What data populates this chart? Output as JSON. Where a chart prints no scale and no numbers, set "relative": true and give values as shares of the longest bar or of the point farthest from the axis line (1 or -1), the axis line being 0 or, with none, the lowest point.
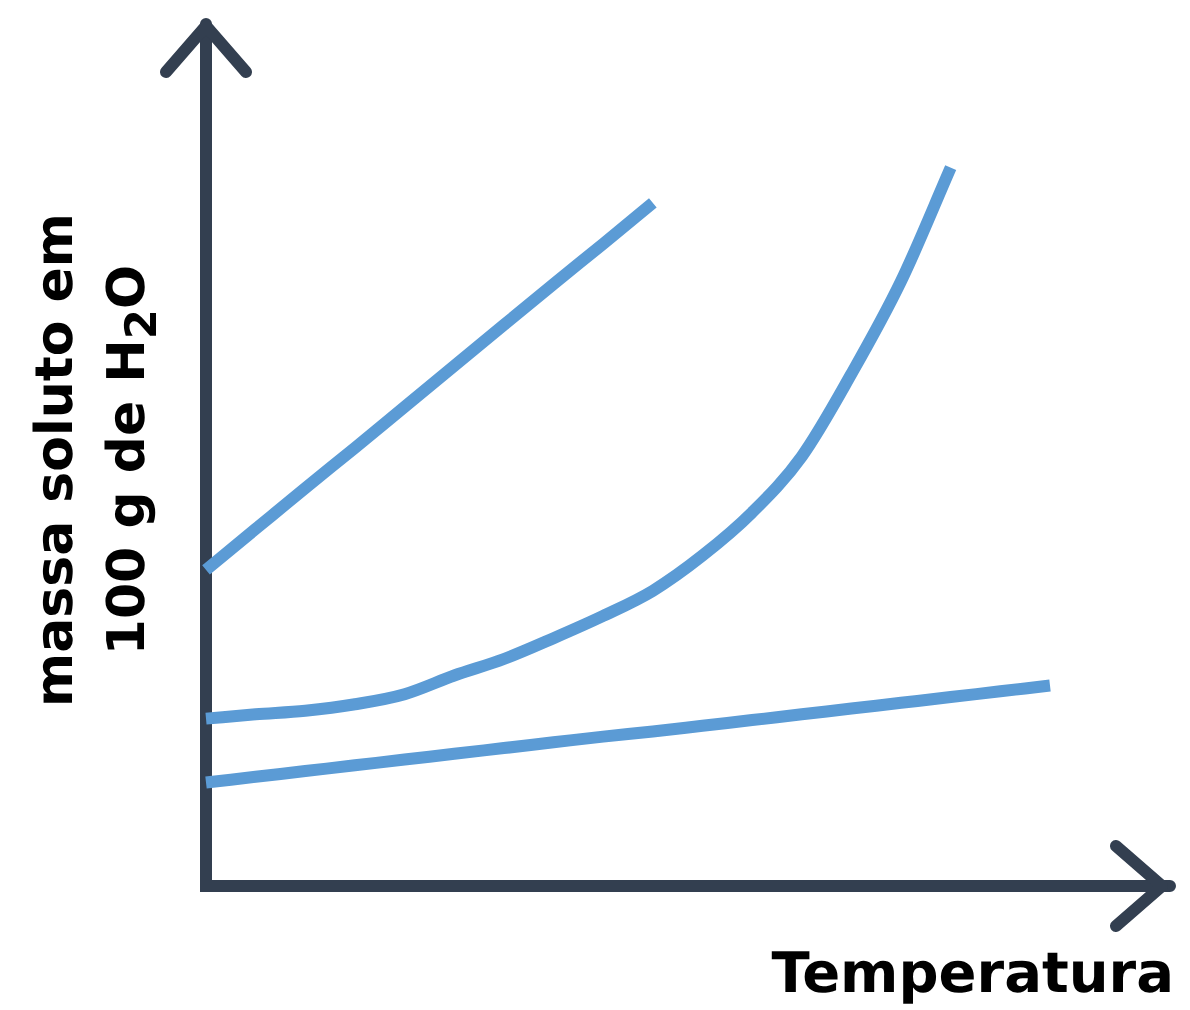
{
  "chart_data": {
    "type": "line",
    "relative": true,
    "xlabel": "Temperatura",
    "ylabel": "massa soluto em\n100 g de H$_{2}$O",
    "categories": [
      null,
      null,
      null,
      null,
      null,
      null,
      null,
      null,
      null,
      null,
      null,
      null,
      null,
      null,
      null,
      null,
      null,
      null
    ],
    "marker": "none",
    "legend": false,
    "tick_labels": false,
    "series": [
      {
        "color": "#5b9bd5",
        "values": [
          0.44,
          0.497,
          0.554,
          0.61,
          0.667,
          0.724,
          0.781,
          0.838,
          0.894,
          0.951,
          null,
          null,
          null,
          null,
          null,
          null,
          null,
          null
        ]
      },
      {
        "color": "#5b9bd5",
        "values": [
          0.233,
          0.239,
          0.244,
          0.253,
          0.267,
          0.293,
          0.316,
          0.345,
          0.376,
          0.411,
          0.46,
          0.52,
          0.598,
          0.713,
          0.842,
          1,
          null,
          null
        ]
      },
      {
        "color": "#5b9bd5",
        "values": [
          0.144,
          0.152,
          0.16,
          0.168,
          0.176,
          0.184,
          0.192,
          0.2,
          0.208,
          0.215,
          0.223,
          0.231,
          0.239,
          0.247,
          0.255,
          0.263,
          0.271,
          0.279
        ]
      }
    ]
  }
}
